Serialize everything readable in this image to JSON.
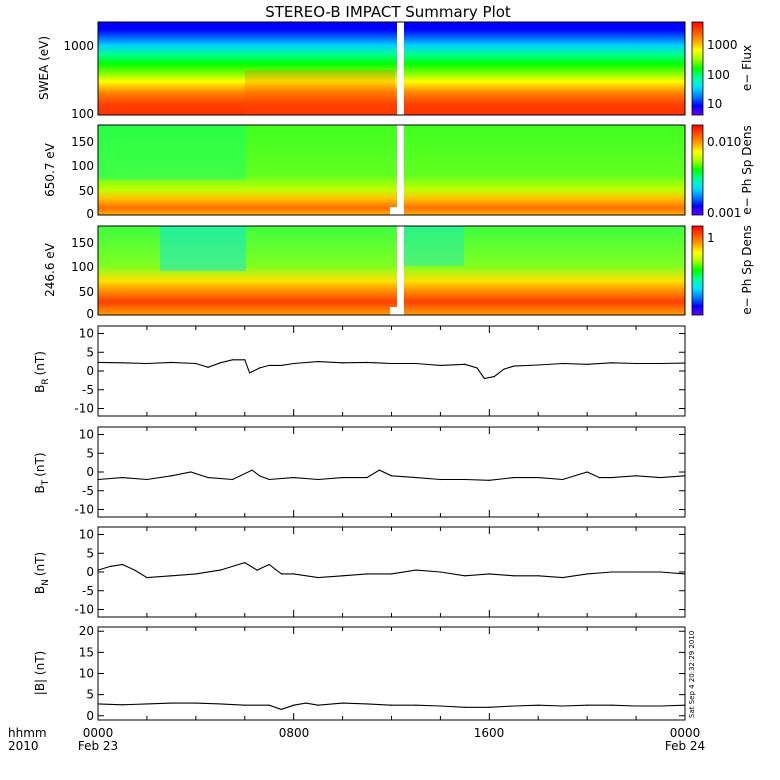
{
  "title": "STEREO-B IMPACT Summary Plot",
  "stamp": "Sat Sep  4 20:32:29 2010",
  "x_axis": {
    "ticks": [
      "0000",
      "0800",
      "1600",
      "0000"
    ],
    "dates": [
      "Feb 23",
      "Feb 24"
    ],
    "left_label": "hhmm",
    "year": "2010"
  },
  "colors": {
    "rainbow": [
      "#6a00ff",
      "#0000ff",
      "#0080ff",
      "#00e0ff",
      "#00ff9c",
      "#00ff00",
      "#a0ff00",
      "#ffff00",
      "#ffa000",
      "#ff5000",
      "#ff0000"
    ]
  },
  "chart_data": [
    {
      "type": "heatmap",
      "name": "SWEA",
      "ylabel": "SWEA (eV)",
      "yscale": "log",
      "ylim": [
        100,
        2000
      ],
      "yticks": [
        "1000",
        "100"
      ],
      "colorbar_label": "e− Flux",
      "colorbar_ticks": [
        "1000",
        "100",
        "10"
      ],
      "data_gap_hours": [
        12.2,
        12.45
      ]
    },
    {
      "type": "heatmap",
      "name": "650.7 eV pitch angle",
      "ylabel": "650.7 eV",
      "ylim": [
        0,
        180
      ],
      "yticks": [
        "150",
        "100",
        "50",
        "0"
      ],
      "colorbar_label": "e− Ph Sp Dens",
      "colorbar_ticks": [
        "0.010",
        "0.001"
      ],
      "data_gap_hours": [
        12.2,
        12.45
      ]
    },
    {
      "type": "heatmap",
      "name": "246.6 eV pitch angle",
      "ylabel": "246.6 eV",
      "ylim": [
        0,
        180
      ],
      "yticks": [
        "150",
        "100",
        "50",
        "0"
      ],
      "colorbar_label": "e− Ph Sp Dens",
      "colorbar_ticks": [
        "1"
      ],
      "data_gap_hours": [
        12.2,
        12.45
      ]
    },
    {
      "type": "line",
      "name": "BR",
      "ylabel": "B",
      "ylabel_sub": "R",
      "ylabel_unit": "(nT)",
      "ylim": [
        -12,
        12
      ],
      "yticks": [
        "10",
        "5",
        "0",
        "-5",
        "-10"
      ],
      "x": [
        0,
        1,
        2,
        3,
        4,
        4.5,
        5,
        5.5,
        6,
        6.2,
        6.6,
        7,
        7.5,
        8,
        9,
        10,
        11,
        12,
        13,
        14,
        15,
        15.5,
        15.8,
        16.2,
        16.6,
        17,
        18,
        19,
        20,
        21,
        22,
        23,
        24
      ],
      "y": [
        2.3,
        2.2,
        2.0,
        2.3,
        2.0,
        1.0,
        2.2,
        3.0,
        3.0,
        -0.5,
        0.8,
        1.5,
        1.5,
        2.0,
        2.5,
        2.2,
        2.3,
        2.0,
        2.0,
        1.5,
        1.8,
        0.8,
        -2.0,
        -1.5,
        0.5,
        1.3,
        1.6,
        2.0,
        1.8,
        2.2,
        2.0,
        2.0,
        2.1
      ]
    },
    {
      "type": "line",
      "name": "BT",
      "ylabel": "B",
      "ylabel_sub": "T",
      "ylabel_unit": "(nT)",
      "ylim": [
        -12,
        12
      ],
      "yticks": [
        "10",
        "5",
        "0",
        "-5",
        "-10"
      ],
      "x": [
        0,
        1,
        2,
        3,
        3.8,
        4.5,
        5.5,
        6.3,
        6.6,
        7,
        8,
        9,
        10,
        11,
        11.5,
        12,
        13,
        14,
        15,
        16,
        17,
        18,
        19,
        20,
        20.5,
        21,
        22,
        23,
        24
      ],
      "y": [
        -2.0,
        -1.5,
        -2.0,
        -1.0,
        0.0,
        -1.5,
        -2.0,
        0.5,
        -1.0,
        -2.0,
        -1.5,
        -2.0,
        -1.5,
        -1.5,
        0.5,
        -1.0,
        -1.5,
        -2.0,
        -2.0,
        -2.2,
        -1.5,
        -1.5,
        -2.0,
        0.0,
        -1.5,
        -1.5,
        -1.0,
        -1.5,
        -1.0
      ]
    },
    {
      "type": "line",
      "name": "BN",
      "ylabel": "B",
      "ylabel_sub": "N",
      "ylabel_unit": "(nT)",
      "ylim": [
        -12,
        12
      ],
      "yticks": [
        "10",
        "5",
        "0",
        "-5",
        "-10"
      ],
      "x": [
        0,
        0.5,
        1,
        1.5,
        2,
        3,
        4,
        5,
        6,
        6.5,
        7,
        7.5,
        8,
        9,
        10,
        11,
        12,
        13,
        14,
        15,
        16,
        17,
        18,
        19,
        20,
        21,
        22,
        23,
        24
      ],
      "y": [
        0.5,
        1.5,
        2.0,
        0.5,
        -1.5,
        -1.0,
        -0.5,
        0.5,
        2.5,
        0.5,
        2.0,
        -0.5,
        -0.5,
        -1.5,
        -1.0,
        -0.5,
        -0.5,
        0.5,
        0.0,
        -1.0,
        -0.5,
        -1.0,
        -1.0,
        -1.5,
        -0.5,
        0.0,
        0.0,
        0.0,
        -0.5
      ]
    },
    {
      "type": "line",
      "name": "|B|",
      "ylabel": "|B| (nT)",
      "ylim": [
        -1,
        21
      ],
      "yticks": [
        "20",
        "15",
        "10",
        "5",
        "0"
      ],
      "x": [
        0,
        1,
        2,
        3,
        4,
        5,
        6,
        7,
        7.5,
        8,
        8.5,
        9,
        10,
        11,
        12,
        13,
        14,
        15,
        16,
        17,
        18,
        19,
        20,
        21,
        22,
        23,
        24
      ],
      "y": [
        2.8,
        2.6,
        2.8,
        3.0,
        3.0,
        2.8,
        2.5,
        2.5,
        1.5,
        2.5,
        3.0,
        2.5,
        3.0,
        2.8,
        2.5,
        2.5,
        2.3,
        2.0,
        2.0,
        2.3,
        2.5,
        2.3,
        2.5,
        2.5,
        2.3,
        2.3,
        2.5
      ]
    }
  ]
}
